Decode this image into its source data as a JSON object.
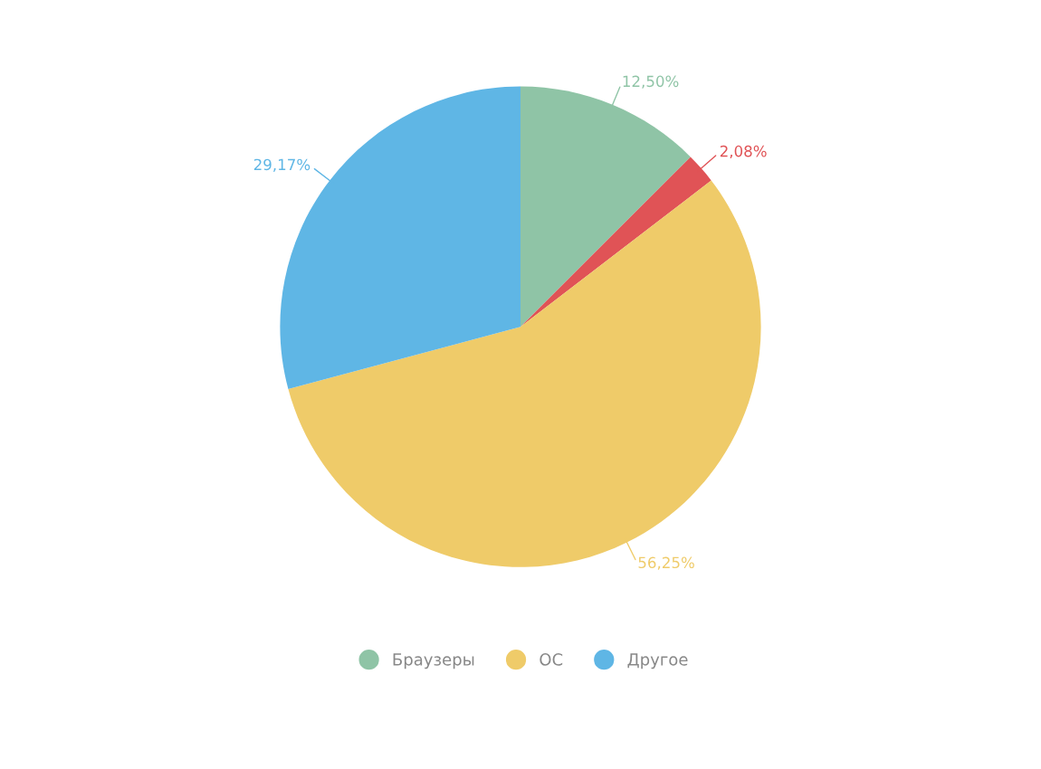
{
  "chart_data": {
    "type": "pie",
    "categories": [
      "Браузеры",
      null,
      "ОС",
      "Другое"
    ],
    "values": [
      12.5,
      2.08,
      56.25,
      29.17
    ],
    "value_labels": [
      "12,50%",
      "2,08%",
      "56,25%",
      "29,17%"
    ],
    "colors": [
      "#8fc4a6",
      "#e05356",
      "#efcb69",
      "#5fb6e5"
    ],
    "legend": "bottom"
  }
}
